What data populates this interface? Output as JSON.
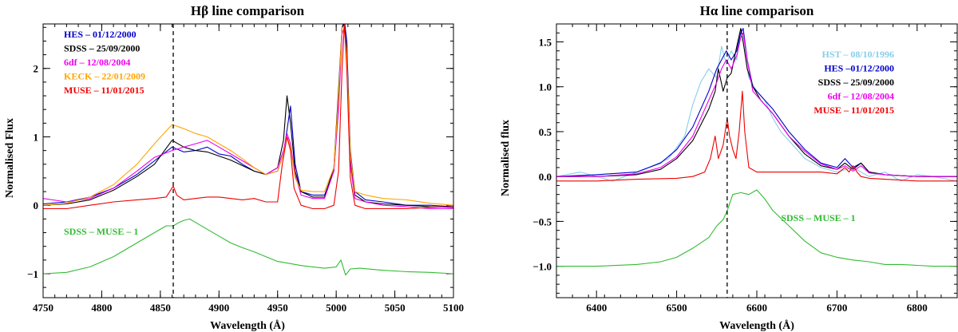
{
  "chart_data": [
    {
      "type": "line",
      "title": "Hβ line comparison",
      "xlabel": "Wavelength (Å)",
      "ylabel": "Normalised Flux",
      "xlim": [
        4750,
        5100
      ],
      "ylim": [
        -1.35,
        2.65
      ],
      "xticks": [
        4750,
        4800,
        4850,
        4900,
        4950,
        5000,
        5050,
        5100
      ],
      "xtick_labels": [
        "4750",
        "4800",
        "4850",
        "4900",
        "4950",
        "5000",
        "5050",
        "5100"
      ],
      "yticks": [
        -1,
        0,
        1,
        2
      ],
      "ytick_labels": [
        "−1",
        "0",
        "1",
        "2"
      ],
      "vline": 4861,
      "legend_position": "top-left",
      "series": [
        {
          "name": "HES – 01/12/2000",
          "color": "#0000cc",
          "x": [
            4750,
            4770,
            4790,
            4810,
            4830,
            4845,
            4860,
            4870,
            4880,
            4890,
            4900,
            4910,
            4920,
            4930,
            4940,
            4950,
            4955,
            4958,
            4961,
            4965,
            4970,
            4980,
            4990,
            4998,
            5002,
            5005,
            5007,
            5009,
            5012,
            5016,
            5025,
            5040,
            5060,
            5080,
            5100
          ],
          "y": [
            0.02,
            0.05,
            0.12,
            0.25,
            0.45,
            0.65,
            0.85,
            0.78,
            0.8,
            0.85,
            0.75,
            0.72,
            0.6,
            0.5,
            0.45,
            0.5,
            0.75,
            1.1,
            1.45,
            0.6,
            0.2,
            0.15,
            0.15,
            0.5,
            1.5,
            2.6,
            2.7,
            2.4,
            0.8,
            0.2,
            0.08,
            0.05,
            0.0,
            0.0,
            -0.02
          ]
        },
        {
          "name": "SDSS – 25/09/2000",
          "color": "#000000",
          "x": [
            4750,
            4770,
            4790,
            4810,
            4830,
            4845,
            4860,
            4870,
            4880,
            4890,
            4900,
            4910,
            4920,
            4930,
            4940,
            4950,
            4955,
            4958,
            4961,
            4965,
            4970,
            4980,
            4990,
            4998,
            5002,
            5005,
            5007,
            5009,
            5012,
            5016,
            5025,
            5040,
            5060,
            5080,
            5100
          ],
          "y": [
            0.0,
            0.02,
            0.08,
            0.22,
            0.42,
            0.6,
            0.95,
            0.85,
            0.8,
            0.78,
            0.72,
            0.66,
            0.58,
            0.5,
            0.45,
            0.55,
            0.95,
            1.6,
            1.2,
            0.5,
            0.2,
            0.12,
            0.12,
            0.55,
            1.7,
            2.6,
            2.65,
            2.3,
            0.7,
            0.15,
            0.05,
            0.02,
            0.0,
            -0.02,
            -0.03
          ]
        },
        {
          "name": "6df – 12/08/2004",
          "color": "#ee00ee",
          "x": [
            4750,
            4770,
            4790,
            4810,
            4830,
            4845,
            4860,
            4870,
            4880,
            4890,
            4900,
            4910,
            4920,
            4930,
            4940,
            4950,
            4955,
            4958,
            4961,
            4965,
            4970,
            4980,
            4990,
            4998,
            5002,
            5005,
            5007,
            5009,
            5012,
            5016,
            5025,
            5040,
            5060,
            5080,
            5100
          ],
          "y": [
            0.1,
            0.05,
            0.1,
            0.25,
            0.5,
            0.7,
            0.8,
            0.85,
            0.9,
            0.95,
            0.85,
            0.75,
            0.65,
            0.55,
            0.45,
            0.55,
            0.8,
            1.05,
            0.9,
            0.45,
            0.15,
            0.1,
            0.1,
            0.5,
            1.4,
            2.5,
            2.6,
            2.2,
            0.6,
            0.1,
            0.05,
            0.0,
            -0.02,
            -0.05,
            -0.05
          ]
        },
        {
          "name": "KECK – 22/01/2009",
          "color": "#ffa500",
          "x": [
            4750,
            4770,
            4790,
            4810,
            4830,
            4845,
            4860,
            4870,
            4880,
            4890,
            4900,
            4910,
            4920,
            4930,
            4940,
            4950,
            4955,
            4958,
            4961,
            4965,
            4970,
            4980,
            4990,
            4998,
            5002,
            5005,
            5007,
            5009,
            5012,
            5016,
            5025,
            5040,
            5060,
            5080,
            5100
          ],
          "y": [
            0.0,
            0.03,
            0.12,
            0.3,
            0.6,
            0.9,
            1.18,
            1.12,
            1.05,
            1.0,
            0.9,
            0.8,
            0.68,
            0.55,
            0.45,
            0.5,
            0.75,
            1.0,
            0.85,
            0.4,
            0.22,
            0.2,
            0.2,
            0.55,
            1.6,
            2.6,
            2.6,
            2.2,
            0.75,
            0.2,
            0.15,
            0.1,
            0.08,
            0.03,
            0.0
          ]
        },
        {
          "name": "MUSE – 11/01/2015",
          "color": "#ee0000",
          "x": [
            4750,
            4770,
            4790,
            4810,
            4830,
            4845,
            4855,
            4858,
            4861,
            4864,
            4870,
            4880,
            4890,
            4900,
            4910,
            4920,
            4930,
            4940,
            4950,
            4954,
            4958,
            4961,
            4964,
            4970,
            4980,
            4990,
            4998,
            5002,
            5005,
            5007,
            5009,
            5012,
            5016,
            5025,
            5040,
            5060,
            5080,
            5100
          ],
          "y": [
            -0.05,
            -0.05,
            0.0,
            0.05,
            0.08,
            0.1,
            0.12,
            0.2,
            0.28,
            0.15,
            0.08,
            0.1,
            0.12,
            0.12,
            0.1,
            0.08,
            0.1,
            0.05,
            0.05,
            0.6,
            1.0,
            0.8,
            0.25,
            0.0,
            -0.05,
            -0.05,
            0.0,
            0.5,
            2.0,
            2.65,
            2.0,
            0.4,
            0.0,
            -0.05,
            -0.05,
            -0.05,
            -0.03,
            -0.02
          ]
        },
        {
          "name": "SDSS – MUSE – 1",
          "color": "#33bb33",
          "x": [
            4750,
            4770,
            4790,
            4810,
            4830,
            4845,
            4855,
            4861,
            4866,
            4870,
            4875,
            4880,
            4890,
            4900,
            4910,
            4920,
            4930,
            4940,
            4950,
            4960,
            4970,
            4980,
            4990,
            5000,
            5004,
            5008,
            5012,
            5020,
            5040,
            5060,
            5080,
            5100
          ],
          "y": [
            -1.0,
            -0.98,
            -0.9,
            -0.75,
            -0.55,
            -0.4,
            -0.3,
            -0.3,
            -0.25,
            -0.22,
            -0.2,
            -0.25,
            -0.35,
            -0.45,
            -0.55,
            -0.62,
            -0.68,
            -0.75,
            -0.82,
            -0.85,
            -0.88,
            -0.9,
            -0.92,
            -0.9,
            -0.8,
            -1.02,
            -0.93,
            -0.92,
            -0.95,
            -0.97,
            -0.98,
            -1.0
          ]
        }
      ],
      "legend": [
        {
          "label": "HES – 01/12/2000",
          "color": "#0000cc"
        },
        {
          "label": "SDSS – 25/09/2000",
          "color": "#000000"
        },
        {
          "label": "6df – 12/08/2004",
          "color": "#ee00ee"
        },
        {
          "label": "KECK – 22/01/2009",
          "color": "#ffa500"
        },
        {
          "label": "MUSE – 11/01/2015",
          "color": "#ee0000"
        }
      ],
      "annotation": {
        "text": "SDSS – MUSE – 1",
        "color": "#33bb33"
      }
    },
    {
      "type": "line",
      "title": "Hα line comparison",
      "xlabel": "Wavelength (Å)",
      "ylabel": "Normalised flux",
      "xlim": [
        6350,
        6850
      ],
      "ylim": [
        -1.35,
        1.7
      ],
      "xticks": [
        6400,
        6500,
        6600,
        6700,
        6800
      ],
      "xtick_labels": [
        "6400",
        "6500",
        "6600",
        "6700",
        "6800"
      ],
      "yticks": [
        -1.0,
        -0.5,
        0.0,
        0.5,
        1.0,
        1.5
      ],
      "ytick_labels": [
        "−1.0",
        "−0.5",
        "0.0",
        "0.5",
        "1.0",
        "1.5"
      ],
      "vline": 6563,
      "legend_position": "top-right",
      "series": [
        {
          "name": "HST – 08/10/1996",
          "color": "#87ceeb",
          "x": [
            6350,
            6380,
            6420,
            6460,
            6490,
            6510,
            6520,
            6530,
            6540,
            6550,
            6556,
            6562,
            6568,
            6575,
            6580,
            6585,
            6590,
            6600,
            6610,
            6620,
            6630,
            6640,
            6650,
            6660,
            6680,
            6700,
            6720,
            6740,
            6760,
            6780,
            6800,
            6820,
            6850
          ],
          "y": [
            0.0,
            0.05,
            -0.05,
            0.08,
            0.2,
            0.45,
            0.8,
            1.05,
            1.2,
            1.1,
            1.45,
            1.25,
            1.4,
            1.3,
            1.65,
            1.4,
            1.1,
            0.95,
            0.85,
            0.65,
            0.5,
            0.4,
            0.3,
            0.2,
            0.1,
            0.05,
            0.1,
            0.0,
            0.05,
            -0.05,
            0.02,
            0.0,
            -0.05
          ]
        },
        {
          "name": "HES –01/12/2000",
          "color": "#0000cc",
          "x": [
            6350,
            6400,
            6450,
            6480,
            6500,
            6520,
            6540,
            6550,
            6556,
            6562,
            6568,
            6575,
            6580,
            6583,
            6588,
            6595,
            6605,
            6620,
            6640,
            6660,
            6680,
            6700,
            6710,
            6720,
            6730,
            6740,
            6760,
            6800,
            6850
          ],
          "y": [
            0.0,
            0.02,
            0.05,
            0.15,
            0.3,
            0.55,
            0.95,
            1.2,
            1.3,
            1.4,
            1.3,
            1.4,
            1.6,
            1.65,
            1.3,
            1.0,
            0.9,
            0.75,
            0.5,
            0.3,
            0.15,
            0.1,
            0.2,
            0.1,
            0.15,
            0.05,
            0.02,
            0.0,
            0.0
          ]
        },
        {
          "name": "SDSS – 25/09/2000",
          "color": "#000000",
          "x": [
            6350,
            6400,
            6450,
            6480,
            6500,
            6520,
            6540,
            6548,
            6552,
            6558,
            6563,
            6568,
            6575,
            6580,
            6583,
            6588,
            6595,
            6605,
            6620,
            6640,
            6660,
            6680,
            6700,
            6710,
            6720,
            6730,
            6740,
            6760,
            6800,
            6850
          ],
          "y": [
            0.0,
            0.0,
            0.02,
            0.08,
            0.2,
            0.4,
            0.75,
            0.95,
            1.2,
            0.95,
            1.1,
            1.15,
            1.45,
            1.65,
            1.5,
            1.2,
            1.0,
            0.85,
            0.7,
            0.45,
            0.25,
            0.12,
            0.08,
            0.15,
            0.08,
            0.15,
            0.05,
            0.02,
            0.0,
            0.0
          ]
        },
        {
          "name": "6df – 12/08/2004",
          "color": "#ee00ee",
          "x": [
            6350,
            6400,
            6450,
            6480,
            6500,
            6520,
            6540,
            6550,
            6556,
            6562,
            6568,
            6575,
            6580,
            6583,
            6588,
            6595,
            6605,
            6620,
            6640,
            6660,
            6680,
            6700,
            6710,
            6720,
            6730,
            6740,
            6760,
            6800,
            6850
          ],
          "y": [
            0.0,
            0.0,
            0.03,
            0.1,
            0.22,
            0.45,
            0.85,
            1.05,
            1.2,
            1.3,
            1.2,
            1.35,
            1.55,
            1.6,
            1.3,
            0.95,
            0.85,
            0.7,
            0.45,
            0.28,
            0.14,
            0.08,
            0.12,
            0.06,
            0.12,
            0.04,
            0.02,
            0.0,
            0.0
          ]
        },
        {
          "name": "MUSE – 11/01/2015",
          "color": "#ee0000",
          "x": [
            6350,
            6400,
            6450,
            6500,
            6520,
            6535,
            6542,
            6548,
            6552,
            6558,
            6563,
            6566,
            6570,
            6574,
            6578,
            6582,
            6585,
            6590,
            6600,
            6620,
            6650,
            6680,
            6700,
            6710,
            6715,
            6720,
            6725,
            6730,
            6740,
            6760,
            6800,
            6850
          ],
          "y": [
            -0.05,
            -0.05,
            -0.03,
            -0.02,
            0.0,
            0.05,
            0.2,
            0.45,
            0.2,
            0.35,
            0.65,
            0.45,
            0.3,
            0.2,
            0.5,
            0.95,
            0.5,
            0.1,
            0.05,
            0.05,
            0.05,
            0.05,
            0.03,
            0.1,
            0.05,
            0.12,
            0.05,
            0.0,
            -0.02,
            -0.03,
            -0.05,
            -0.05
          ]
        },
        {
          "name": "SDSS – MUSE – 1",
          "color": "#33bb33",
          "x": [
            6350,
            6400,
            6450,
            6480,
            6500,
            6520,
            6540,
            6550,
            6558,
            6563,
            6570,
            6580,
            6590,
            6600,
            6610,
            6620,
            6640,
            6660,
            6680,
            6700,
            6720,
            6740,
            6760,
            6780,
            6800,
            6820,
            6850
          ],
          "y": [
            -1.0,
            -1.0,
            -0.98,
            -0.95,
            -0.9,
            -0.8,
            -0.68,
            -0.55,
            -0.48,
            -0.38,
            -0.2,
            -0.18,
            -0.2,
            -0.15,
            -0.25,
            -0.38,
            -0.55,
            -0.72,
            -0.85,
            -0.9,
            -0.93,
            -0.95,
            -0.98,
            -0.98,
            -0.99,
            -1.0,
            -1.0
          ]
        }
      ],
      "legend": [
        {
          "label": "HST – 08/10/1996",
          "color": "#87ceeb"
        },
        {
          "label": "HES –01/12/2000",
          "color": "#0000cc"
        },
        {
          "label": "SDSS – 25/09/2000",
          "color": "#000000"
        },
        {
          "label": "6df – 12/08/2004",
          "color": "#ee00ee"
        },
        {
          "label": "MUSE – 11/01/2015",
          "color": "#ee0000"
        }
      ],
      "annotation": {
        "text": "SDSS – MUSE – 1",
        "color": "#33bb33"
      }
    }
  ]
}
